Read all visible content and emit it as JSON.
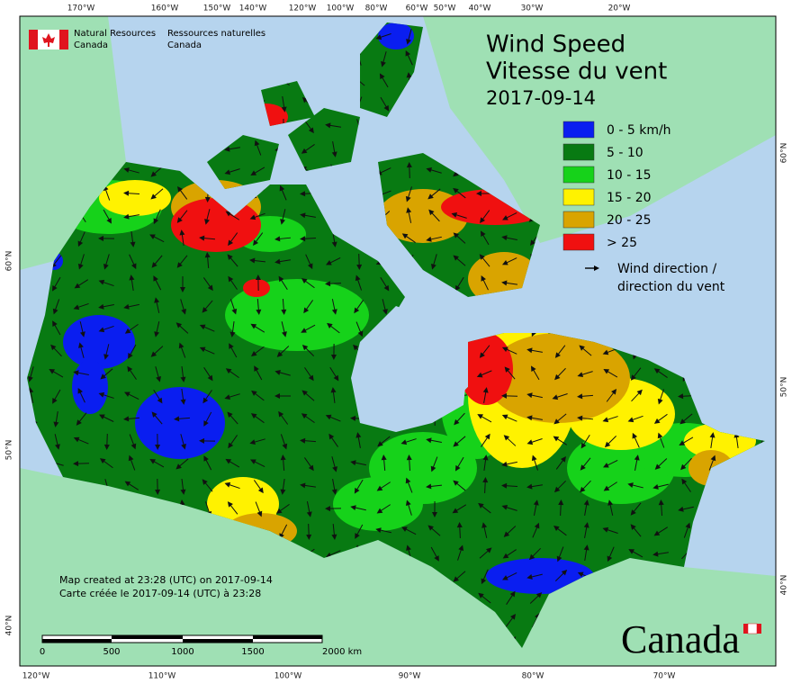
{
  "logo": {
    "english": [
      "Natural Resources",
      "Canada"
    ],
    "french": [
      "Ressources naturelles",
      "Canada"
    ]
  },
  "title": {
    "lines": [
      "Wind Speed",
      "Vitesse du vent"
    ],
    "date": "2017-09-14"
  },
  "legend": {
    "classes": [
      {
        "label": "0 - 5 km/h",
        "color": "#0a1ef0"
      },
      {
        "label": "5 - 10",
        "color": "#087a12"
      },
      {
        "label": "10 - 15",
        "color": "#16d21a"
      },
      {
        "label": "15 - 20",
        "color": "#fff200"
      },
      {
        "label": "20 - 25",
        "color": "#d9a400"
      },
      {
        "label": "> 25",
        "color": "#f01010"
      }
    ],
    "arrow_label": [
      "Wind direction /",
      "direction du vent"
    ]
  },
  "graticule": {
    "top": [
      "170°W",
      "160°W",
      "150°W",
      "140°W",
      "120°W",
      "100°W",
      "80°W",
      "60°W",
      "50°W",
      "40°W",
      "30°W",
      "20°W"
    ],
    "bottom": [
      "120°W",
      "110°W",
      "100°W",
      "90°W",
      "80°W",
      "70°W"
    ],
    "left": [
      "60°N",
      "50°N",
      "40°N"
    ],
    "right": [
      "60°N",
      "50°N",
      "40°N"
    ]
  },
  "credits": [
    "Map created at 23:28 (UTC) on 2017-09-14",
    "Carte créée le 2017-09-14 (UTC) à 23:28"
  ],
  "scale_bar": {
    "labels": [
      "0",
      "500",
      "1000",
      "1500",
      "2000 km"
    ]
  },
  "wordmark": "Canada"
}
